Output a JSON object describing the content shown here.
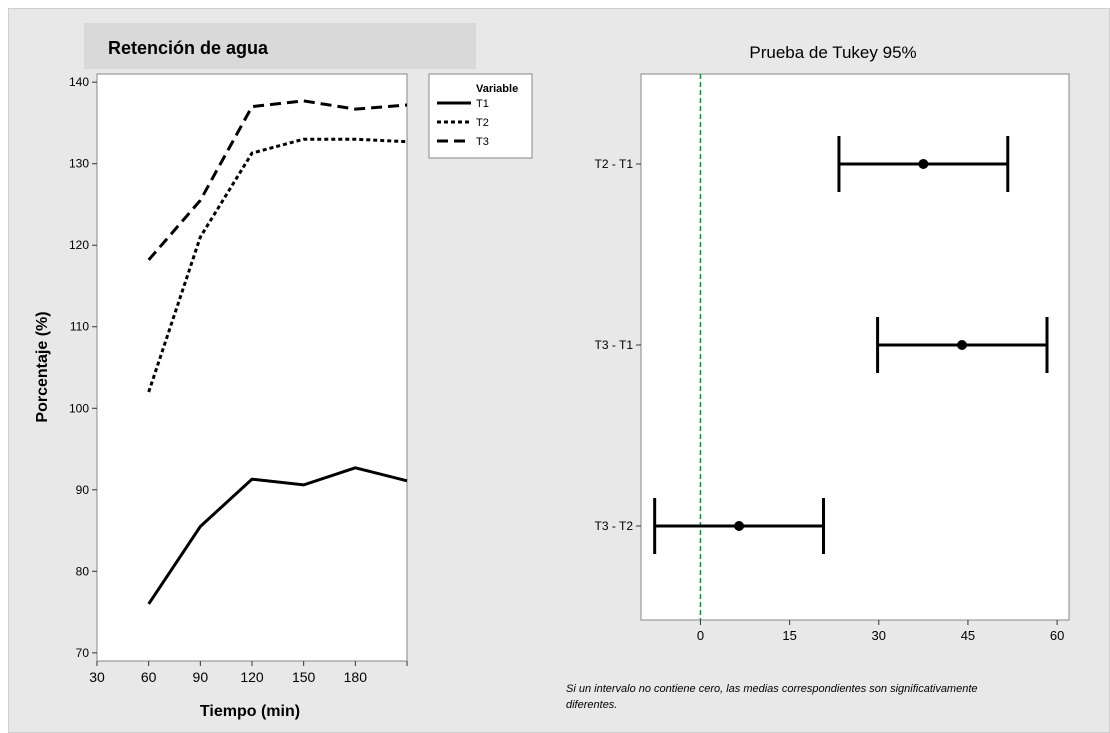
{
  "footnote": "Si un intervalo no contiene cero, las medias correspondientes son significativamente diferentes.",
  "chart_data": [
    {
      "type": "line",
      "title": "Retención de agua",
      "xlabel": "Tiempo (min)",
      "ylabel": "Porcentaje (%)",
      "x": [
        60,
        90,
        120,
        150,
        180,
        210
      ],
      "x_ticks": [
        30,
        60,
        90,
        120,
        150,
        180
      ],
      "xlim": [
        30,
        210
      ],
      "y_ticks": [
        70,
        80,
        90,
        100,
        110,
        120,
        130,
        140
      ],
      "ylim": [
        69,
        141
      ],
      "legend_title": "Variable",
      "legend_position": "right",
      "series": [
        {
          "name": "T1",
          "style": "solid",
          "values": [
            76.0,
            85.5,
            91.3,
            90.6,
            92.7,
            91.1
          ]
        },
        {
          "name": "T2",
          "style": "dotted",
          "values": [
            102.0,
            121.0,
            131.3,
            133.0,
            133.0,
            132.7
          ]
        },
        {
          "name": "T3",
          "style": "dashed",
          "values": [
            118.2,
            125.5,
            137.0,
            137.7,
            136.7,
            137.2
          ]
        }
      ]
    },
    {
      "type": "interval",
      "title": "Prueba de Tukey 95%",
      "xlim": [
        -10,
        62
      ],
      "x_ticks": [
        0,
        15,
        30,
        45,
        60
      ],
      "reference_line": 0,
      "reference_color": "#1e8a3c",
      "comparisons": [
        {
          "label": "T2 - T1",
          "estimate": 37.5,
          "lower": 23.3,
          "upper": 51.7
        },
        {
          "label": "T3 - T1",
          "estimate": 44.0,
          "lower": 29.8,
          "upper": 58.3
        },
        {
          "label": "T3 - T2",
          "estimate": 6.5,
          "lower": -7.7,
          "upper": 20.7
        }
      ]
    }
  ]
}
